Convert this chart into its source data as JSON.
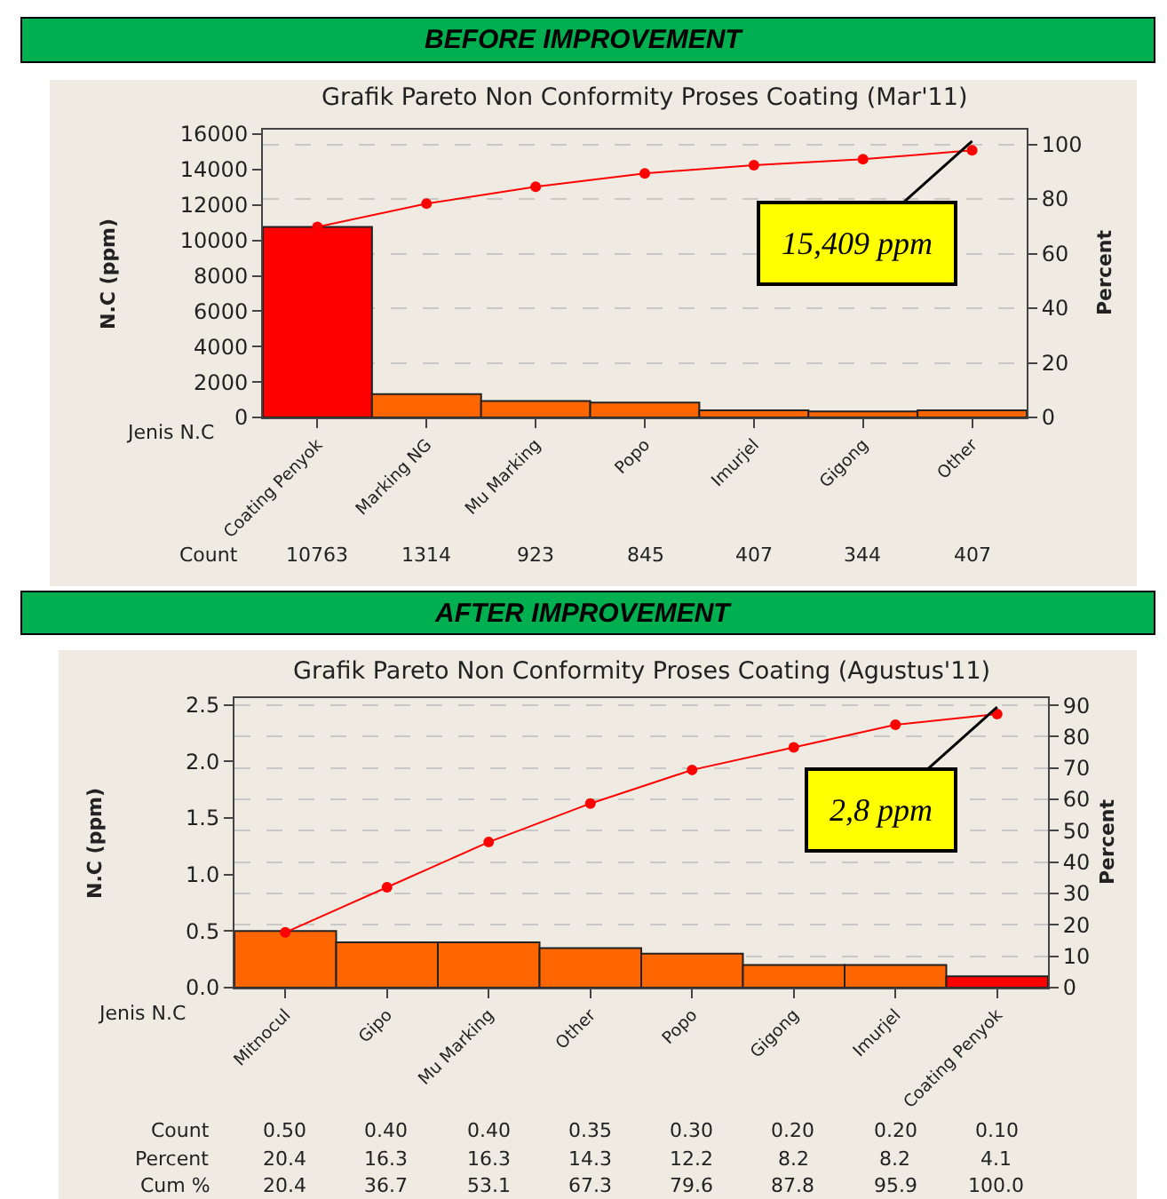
{
  "chart_data": [
    {
      "type": "bar",
      "title": "BEFORE IMPROVEMENT",
      "subtitle": "Grafik Pareto Non Conformity Proses Coating (Mar'11)",
      "xlabel": "Jenis N.C",
      "ylabel": "N.C (ppm)",
      "y2label": "Percent",
      "categories": [
        "Coating Penyok",
        "Marking NG",
        "Mu Marking",
        "Popo",
        "Imurjel",
        "Gigong",
        "Other"
      ],
      "series": [
        {
          "colors": [
            "#ff0000",
            "#ff6600",
            "#ff6600",
            "#ff6600",
            "#ff6600",
            "#ff6600",
            "#ff6600"
          ],
          "values": [
            10763,
            1314,
            923,
            845,
            407,
            344,
            407
          ],
          "value_labels": [
            "10763",
            "1314",
            "923",
            "845",
            "407",
            "344",
            "407"
          ]
        },
        {
          "type": "line",
          "axis": "y2",
          "color": "#ff0000",
          "values": [
            69.8,
            78.3,
            84.5,
            89.4,
            92.4,
            94.6,
            97.8
          ]
        }
      ],
      "ylim": [
        0,
        16250
      ],
      "yticks": [
        0,
        2000,
        4000,
        6000,
        8000,
        10000,
        12000,
        14000,
        16000
      ],
      "y2lim": [
        0,
        105.4
      ],
      "y2ticks": [
        0,
        20,
        40,
        60,
        80,
        100
      ],
      "grid": "y",
      "marker": "circle",
      "annotations": [
        {
          "text": "15,409 ppm",
          "x": "Other",
          "y": 15600
        },
        "Count"
      ]
    },
    {
      "type": "bar",
      "title": "AFTER IMPROVEMENT",
      "subtitle": "Grafik Pareto Non Conformity Proses Coating (Agustus'11)",
      "xlabel": "Jenis N.C",
      "ylabel": "N.C (ppm)",
      "y2label": "Percent",
      "categories": [
        "Mitnocul",
        "Gipo",
        "Mu Marking",
        "Other",
        "Popo",
        "Gigong",
        "Imurjel",
        "Coating Penyok"
      ],
      "series": [
        {
          "colors": [
            "#ff6600",
            "#ff6600",
            "#ff6600",
            "#ff6600",
            "#ff6600",
            "#ff6600",
            "#ff6600",
            "#ff0000"
          ],
          "values": [
            0.5,
            0.4,
            0.4,
            0.35,
            0.3,
            0.2,
            0.2,
            0.1
          ],
          "value_labels": [
            "0.50",
            "0.40",
            "0.40",
            "0.35",
            "0.30",
            "0.20",
            "0.20",
            "0.10"
          ]
        },
        {
          "type": "line",
          "axis": "y2",
          "color": "#ff0000",
          "values": [
            17.6,
            32,
            46.4,
            58.7,
            69.4,
            76.6,
            83.8,
            87.2
          ]
        }
      ],
      "ylim": [
        0,
        2.56
      ],
      "yticks": [
        {
          "value": 0,
          "label": "0.0"
        },
        0.5,
        {
          "value": 1,
          "label": "1.0"
        },
        1.5,
        {
          "value": 2,
          "label": "2.0"
        },
        2.5
      ],
      "y2lim": [
        0,
        92.3
      ],
      "y2ticks": [
        0,
        10,
        20,
        30,
        40,
        50,
        60,
        70,
        80,
        90
      ],
      "grid": "y",
      "marker": "circle",
      "annotations": [
        {
          "text": "2,8 ppm",
          "x": "Coating Penyok",
          "y": 2.48
        },
        "Count",
        "Percent",
        "20.4",
        "16.3",
        "16.3",
        "14.3",
        "12.2",
        "8.2",
        "8.2",
        "4.1",
        "Cum %",
        "20.4",
        "36.7",
        "53.1",
        "67.3",
        "79.6",
        "87.8",
        "95.9",
        "100.0"
      ]
    }
  ]
}
